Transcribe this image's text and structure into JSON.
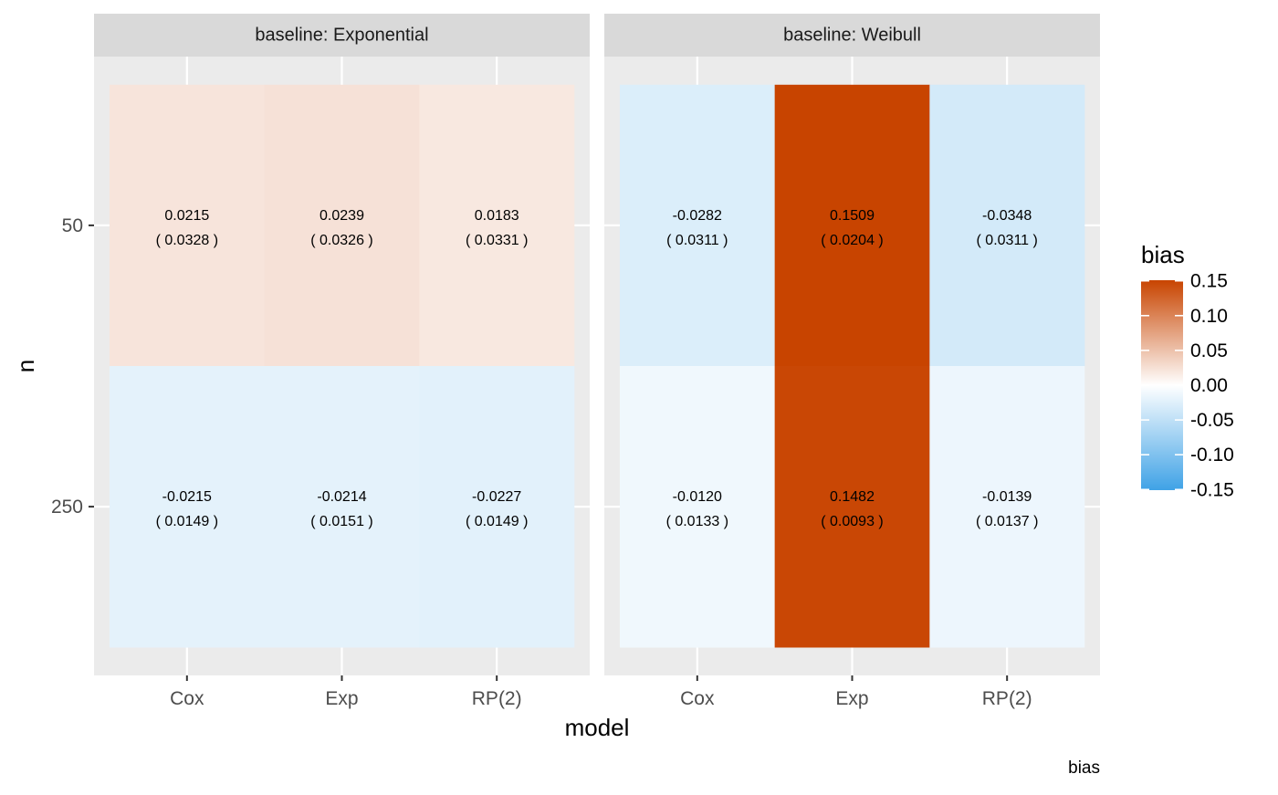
{
  "chart_data": {
    "type": "heatmap",
    "facet_label_prefix": "baseline: ",
    "facets": [
      {
        "baseline": "Exponential",
        "cells": [
          {
            "n": "50",
            "model": "Cox",
            "bias": 0.0215,
            "label": "0.0215",
            "se": "( 0.0328 )"
          },
          {
            "n": "50",
            "model": "Exp",
            "bias": 0.0239,
            "label": "0.0239",
            "se": "( 0.0326 )"
          },
          {
            "n": "50",
            "model": "RP(2)",
            "bias": 0.0183,
            "label": "0.0183",
            "se": "( 0.0331 )"
          },
          {
            "n": "250",
            "model": "Cox",
            "bias": -0.0215,
            "label": "-0.0215",
            "se": "( 0.0149 )"
          },
          {
            "n": "250",
            "model": "Exp",
            "bias": -0.0214,
            "label": "-0.0214",
            "se": "( 0.0151 )"
          },
          {
            "n": "250",
            "model": "RP(2)",
            "bias": -0.0227,
            "label": "-0.0227",
            "se": "( 0.0149 )"
          }
        ]
      },
      {
        "baseline": "Weibull",
        "cells": [
          {
            "n": "50",
            "model": "Cox",
            "bias": -0.0282,
            "label": "-0.0282",
            "se": "( 0.0311 )"
          },
          {
            "n": "50",
            "model": "Exp",
            "bias": 0.1509,
            "label": "0.1509",
            "se": "( 0.0204 )"
          },
          {
            "n": "50",
            "model": "RP(2)",
            "bias": -0.0348,
            "label": "-0.0348",
            "se": "( 0.0311 )"
          },
          {
            "n": "250",
            "model": "Cox",
            "bias": -0.012,
            "label": "-0.0120",
            "se": "( 0.0133 )"
          },
          {
            "n": "250",
            "model": "Exp",
            "bias": 0.1482,
            "label": "0.1482",
            "se": "( 0.0093 )"
          },
          {
            "n": "250",
            "model": "RP(2)",
            "bias": -0.0139,
            "label": "-0.0139",
            "se": "( 0.0137 )"
          }
        ]
      }
    ],
    "x_categories": [
      "Cox",
      "Exp",
      "RP(2)"
    ],
    "y_categories": [
      "50",
      "250"
    ],
    "xlabel": "model",
    "ylabel": "n",
    "legend": {
      "title": "bias",
      "position": "right",
      "limits": [
        -0.1509,
        0.1509
      ],
      "ticks": [
        0.15,
        0.1,
        0.05,
        0.0,
        -0.05,
        -0.1,
        -0.15
      ],
      "tick_labels": [
        "0.15",
        "0.10",
        "0.05",
        "0.00",
        "-0.05",
        "-0.10",
        "-0.15"
      ]
    },
    "caption": "bias",
    "colors": {
      "high": "#C84400",
      "mid": "#FFFFFF",
      "low": "#3FA2E6",
      "panel_background": "#EBEBEB",
      "grid": "#FFFFFF",
      "strip_background": "#D9D9D9"
    },
    "grid": true
  }
}
